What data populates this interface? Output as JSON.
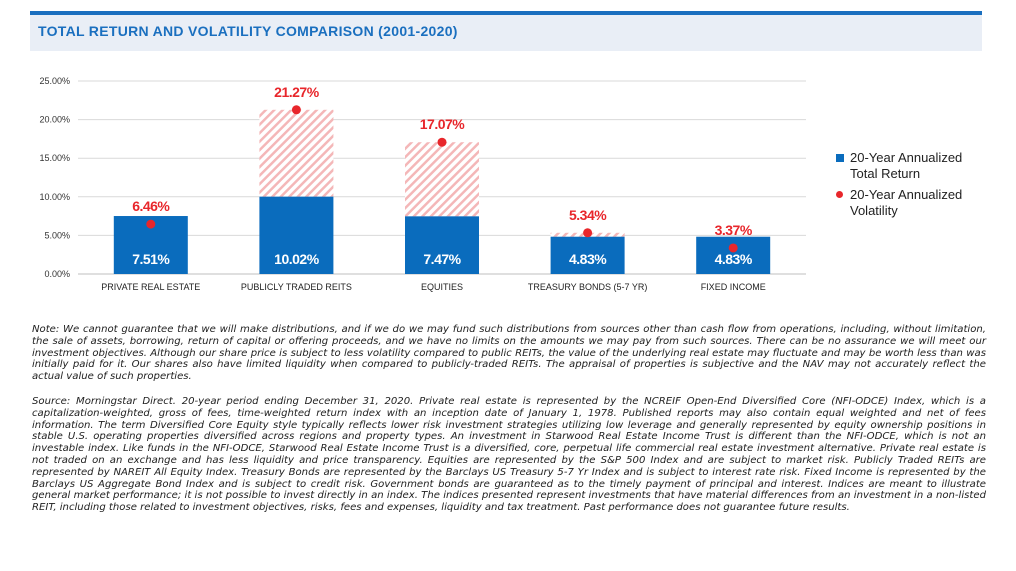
{
  "title": "TOTAL RETURN AND VOLATILITY COMPARISON (2001-2020)",
  "chart_data": {
    "type": "bar",
    "categories": [
      "PRIVATE REAL ESTATE",
      "PUBLICLY TRADED REITS",
      "EQUITIES",
      "TREASURY BONDS (5-7 YR)",
      "FIXED INCOME"
    ],
    "series": [
      {
        "name": "20-Year Annualized Total Return",
        "values": [
          7.51,
          10.02,
          7.47,
          4.83,
          4.83
        ],
        "labels": [
          "7.51%",
          "10.02%",
          "7.47%",
          "4.83%",
          "4.83%"
        ]
      },
      {
        "name": "20-Year Annualized Volatility",
        "values": [
          6.46,
          21.27,
          17.07,
          5.34,
          3.37
        ],
        "labels": [
          "6.46%",
          "21.27%",
          "17.07%",
          "5.34%",
          "3.37%"
        ]
      }
    ],
    "yticks": [
      "0.00%",
      "5.00%",
      "10.00%",
      "15.00%",
      "20.00%",
      "25.00%"
    ],
    "ylim": [
      0,
      25
    ],
    "grid": true,
    "legend_position": "right",
    "colors": {
      "bar": "#0a6cbd",
      "dot": "#e8262b",
      "hatch": "#f2a5a7"
    }
  },
  "legend": [
    {
      "line1": "20-Year Annualized",
      "line2": "Total Return"
    },
    {
      "line1": "20-Year Annualized",
      "line2": "Volatility"
    }
  ],
  "notes": {
    "note1": "Note: We cannot guarantee that we will make distributions, and if we do we may fund such distributions from sources other than cash flow from operations, including, without limitation, the sale of assets, borrowing, return of capital or  offering proceeds, and we have no limits on the amounts we may pay from such sources. There can be no assurance we will meet our investment objectives. Although our share price is subject to less volatility compared to public REITs, the value of the underlying real estate may fluctuate and may be worth less than was initially paid for it. Our shares also have limited liquidity when compared to publicly-traded REITs. The appraisal of properties is subjective and the NAV may  not accurately reflect the actual value of such properties.",
    "note2": "Source: Morningstar Direct. 20-year period ending December 31, 2020. Private real estate is represented by the NCREIF Open-End Diversified Core (NFI-ODCE) Index, which is a capitalization-weighted, gross of fees, time-weighted return index with an inception date of January 1, 1978. Published reports may also contain equal weighted and net of fees information. The term Diversified Core Equity style typically reflects lower risk investment strategies utilizing low leverage and generally represented by equity ownership positions in stable U.S. operating properties diversified across regions and property types. An investment in Starwood Real Estate Income Trust is different than the NFI-ODCE, which is not an  investable index. Like funds in the NFI-ODCE, Starwood Real Estate Income Trust is a diversified, core, perpetual life commercial real estate investment alternative. Private real estate is not traded on an exchange and has less liquidity and  price transparency. Equities are represented by the S&P 500 Index and are subject to market risk. Publicly Traded REITs are represented by NAREIT All Equity Index. Treasury Bonds are represented by the Barclays US Treasury 5-7 Yr Index  and is subject to interest rate risk. Fixed Income is represented by the Barclays US Aggregate Bond Index and is subject to credit risk. Government bonds are guaranteed as to the timely payment of principal and interest. Indices are meant to  illustrate general market performance; it is not possible to invest directly in an index. The indices presented represent investments that have material differences from an investment in a non-listed REIT, including those related to investment  objectives, risks, fees and expenses, liquidity and tax treatment. Past performance does not guarantee future results."
  }
}
